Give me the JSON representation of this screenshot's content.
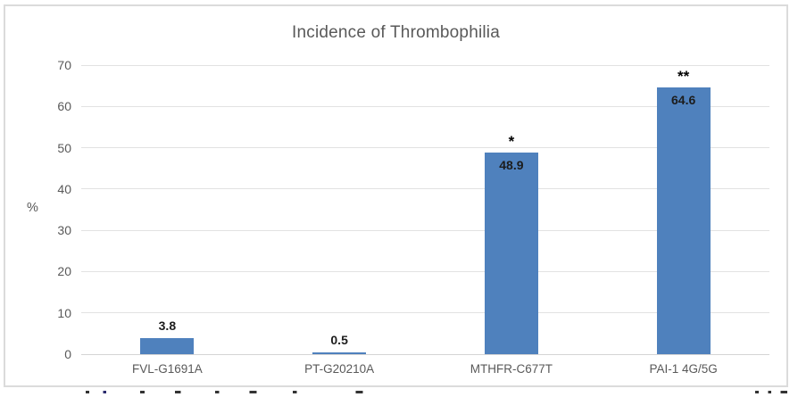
{
  "figure": {
    "background": "#ffffff",
    "frame_border_color": "#dbdbdb"
  },
  "chart_data": {
    "type": "bar",
    "title": "Incidence of Thrombophilia",
    "categories": [
      "FVL-G1691A",
      "PT-G20210A",
      "MTHFR-C677T",
      "PAI-1 4G/5G"
    ],
    "values": [
      3.8,
      0.5,
      48.9,
      64.6
    ],
    "data_labels": [
      "3.8",
      "0.5",
      "48.9",
      "64.6"
    ],
    "label_placement": [
      "outside-end",
      "outside-end",
      "inside-end",
      "inside-end"
    ],
    "significance_marks": [
      "",
      "",
      "*",
      "**"
    ],
    "xlabel": "",
    "ylabel": "%",
    "ylim": [
      0,
      70
    ],
    "yticks": [
      0,
      10,
      20,
      30,
      40,
      50,
      60,
      70
    ],
    "grid": "horizontal",
    "legend_position": "none",
    "bar_color": "#4f81bd",
    "title_color": "#595959",
    "axis_text_color": "#595959",
    "data_label_color": "#1c1c1c"
  }
}
